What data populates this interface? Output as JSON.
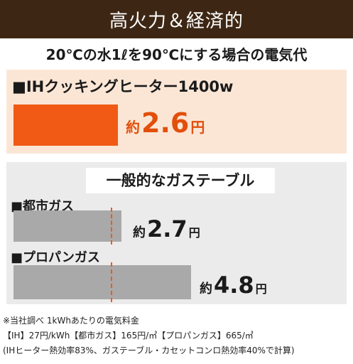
{
  "banner": {
    "title": "高火力＆経済的"
  },
  "subtitle": "20℃の水1ℓを90℃にする場合の電気代",
  "ih": {
    "title": "■IHクッキングヒーター1400w",
    "price_prefix": "約",
    "price_value": "2.6",
    "price_unit": "円",
    "relative_cost": 2.6,
    "bar_color": "#f05a14"
  },
  "gas": {
    "heading": "一般的なガステーブル",
    "items": [
      {
        "label": "■都市ガス",
        "price_prefix": "約",
        "price_value": "2.7",
        "price_unit": "円",
        "relative_cost": 2.7
      },
      {
        "label": "■プロパンガス",
        "price_prefix": "約",
        "price_value": "4.8",
        "price_unit": "円",
        "relative_cost": 4.8
      }
    ],
    "bar_color": "#a9a9a9",
    "dash_color": "#f05a14"
  },
  "notes": {
    "line1": "※当社調べ 1kWhあたりの電気料金",
    "line2": "【IH】27円/kWh【都市ガス】165円/㎥【プロパンガス】665/㎥",
    "line3": "(IHヒーター熱効率83%、ガステーブル・カセットコンロ熱効率40%で計算)"
  }
}
